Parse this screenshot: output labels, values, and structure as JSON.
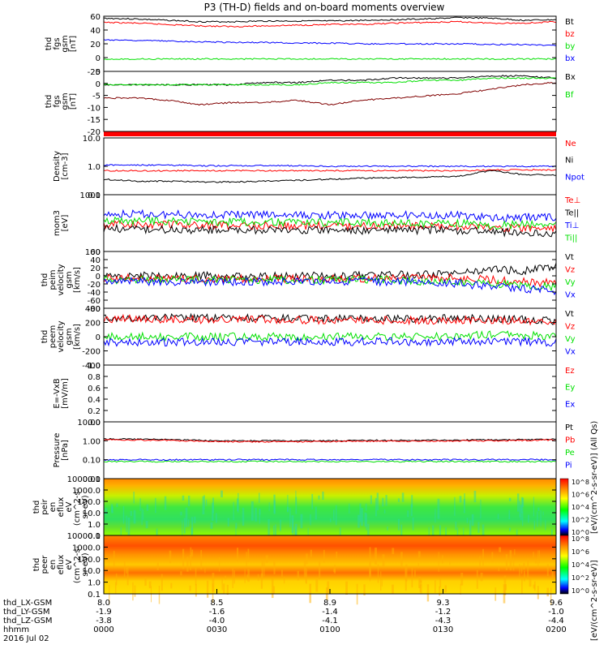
{
  "title": "P3 (TH-D) fields and on-board moments overview",
  "colors": {
    "black": "#000000",
    "red": "#ff0000",
    "green": "#00e000",
    "blue": "#0000ff"
  },
  "chart_data": [
    {
      "type": "line",
      "id": "p1",
      "ylabel": [
        "thd",
        "fgs",
        "gsm",
        "[nT]"
      ],
      "yticks": [
        "60",
        "40",
        "20",
        "0",
        "-20"
      ],
      "ylim": [
        -20,
        60
      ],
      "series": [
        {
          "name": "Bt",
          "color": "#000000",
          "values": [
            57,
            56,
            54,
            52,
            52,
            53,
            53,
            53,
            54,
            55,
            56,
            58,
            57,
            54,
            55
          ]
        },
        {
          "name": "bz",
          "color": "#ff0000",
          "values": [
            51,
            50,
            48,
            46,
            45,
            46,
            47,
            48,
            48,
            50,
            51,
            52,
            50,
            50,
            52
          ]
        },
        {
          "name": "by",
          "color": "#00e000",
          "values": [
            -2,
            -2,
            -2,
            -2,
            -2,
            -2,
            -2,
            -2,
            -2,
            -2,
            -2,
            -2,
            -2,
            -2,
            -2
          ]
        },
        {
          "name": "bx",
          "color": "#0000ff",
          "values": [
            26,
            25,
            24,
            23,
            22,
            22,
            21,
            21,
            20,
            20,
            20,
            20,
            19,
            19,
            18
          ]
        }
      ]
    },
    {
      "type": "line",
      "id": "p2",
      "ylabel": [
        "thd",
        "fgs",
        "gsm",
        "[nT]"
      ],
      "yticks": [
        "5",
        "0",
        "-5",
        "-10",
        "-15",
        "-20"
      ],
      "ylim": [
        -22,
        5
      ],
      "series": [
        {
          "name": "Bx",
          "color": "#000000",
          "values": [
            -1,
            -1,
            -1,
            -1,
            -1,
            0,
            0,
            1,
            1,
            2,
            2,
            2,
            3,
            3,
            2
          ]
        },
        {
          "name": "Bf",
          "color": "#00e000",
          "values": [
            -1,
            -1,
            -1,
            -1,
            -1,
            -1,
            -1,
            0,
            0,
            0,
            1,
            1,
            2,
            2,
            2
          ]
        },
        {
          "name": "",
          "color": "#800000",
          "values": [
            -7,
            -7,
            -8,
            -10,
            -9,
            -9,
            -8,
            -10,
            -8,
            -7,
            -6,
            -5,
            -3,
            -1,
            0
          ]
        }
      ]
    },
    {
      "type": "line",
      "id": "p3",
      "ylabel": [
        "Density",
        "[cm-3]"
      ],
      "yticks": [
        "10.0",
        "1.0",
        "0.1"
      ],
      "ylim": [
        0.1,
        10
      ],
      "log": true,
      "series": [
        {
          "name": "Ne",
          "color": "#ff0000",
          "values": [
            0.7,
            0.7,
            0.7,
            0.7,
            0.7,
            0.7,
            0.7,
            0.7,
            0.7,
            0.7,
            0.7,
            0.7,
            0.75,
            0.75,
            0.75
          ]
        },
        {
          "name": "Ni",
          "color": "#000000",
          "values": [
            0.35,
            0.3,
            0.3,
            0.28,
            0.28,
            0.3,
            0.32,
            0.35,
            0.38,
            0.4,
            0.42,
            0.45,
            0.7,
            0.5,
            0.5
          ]
        },
        {
          "name": "Npot",
          "color": "#0000ff",
          "values": [
            1.1,
            1.1,
            1.1,
            1.05,
            1.05,
            1.05,
            1.05,
            1.0,
            1.0,
            1.0,
            1.0,
            1.0,
            1.0,
            1.0,
            1.0
          ]
        }
      ]
    },
    {
      "type": "line",
      "id": "p4",
      "ylabel": [
        "mom3",
        "[eV]"
      ],
      "yticks": [
        "1000",
        "100"
      ],
      "ylim": [
        100,
        10000
      ],
      "log": true,
      "series": [
        {
          "name": "Te⊥",
          "color": "#ff0000",
          "values": [
            900,
            880,
            850,
            850,
            830,
            820,
            820,
            800,
            800,
            800,
            800,
            780,
            700,
            650,
            650
          ]
        },
        {
          "name": "Te||",
          "color": "#000000",
          "values": [
            650,
            600,
            600,
            580,
            570,
            560,
            560,
            550,
            550,
            560,
            560,
            560,
            500,
            450,
            450
          ]
        },
        {
          "name": "Ti⊥",
          "color": "#0000ff",
          "values": [
            2000,
            2100,
            2000,
            2000,
            1950,
            1950,
            1900,
            1900,
            1850,
            1900,
            1900,
            1900,
            1500,
            1600,
            1700
          ]
        },
        {
          "name": "Ti||",
          "color": "#00e000",
          "values": [
            1200,
            1200,
            1150,
            1100,
            1100,
            1100,
            1050,
            1050,
            1050,
            1000,
            1000,
            1000,
            800,
            900,
            900
          ]
        }
      ]
    },
    {
      "type": "line",
      "id": "p5",
      "ylabel": [
        "thd",
        "peim",
        "velocity",
        "gsm",
        "[km/s]"
      ],
      "yticks": [
        "60",
        "40",
        "20",
        "0",
        "-20",
        "-40",
        "-60",
        "-80"
      ],
      "ylim": [
        -80,
        80
      ],
      "series": [
        {
          "name": "Vt",
          "color": "#000000",
          "values": [
            10,
            12,
            10,
            12,
            10,
            10,
            12,
            12,
            12,
            15,
            15,
            20,
            30,
            25,
            40
          ]
        },
        {
          "name": "Vz",
          "color": "#ff0000",
          "values": [
            5,
            5,
            4,
            4,
            4,
            4,
            4,
            4,
            4,
            5,
            5,
            5,
            0,
            -5,
            -10
          ]
        },
        {
          "name": "Vy",
          "color": "#00e000",
          "values": [
            0,
            0,
            0,
            0,
            0,
            0,
            0,
            0,
            0,
            0,
            -5,
            -5,
            -10,
            -15,
            -20
          ]
        },
        {
          "name": "Vx",
          "color": "#0000ff",
          "values": [
            -5,
            -5,
            -5,
            -5,
            -5,
            -5,
            -5,
            -5,
            -5,
            -5,
            -5,
            -10,
            -20,
            -25,
            -30
          ]
        }
      ]
    },
    {
      "type": "line",
      "id": "p6",
      "ylabel": [
        "thd",
        "peem",
        "velocity",
        "gsm",
        "[km/s]"
      ],
      "yticks": [
        "400",
        "200",
        "0",
        "-200",
        "-400"
      ],
      "ylim": [
        -400,
        400
      ],
      "series": [
        {
          "name": "Vt",
          "color": "#000000",
          "values": [
            270,
            270,
            265,
            260,
            260,
            260,
            255,
            255,
            250,
            250,
            250,
            260,
            260,
            240,
            220
          ]
        },
        {
          "name": "Vz",
          "color": "#ff0000",
          "values": [
            250,
            250,
            245,
            240,
            240,
            240,
            235,
            235,
            230,
            230,
            230,
            240,
            230,
            220,
            200
          ]
        },
        {
          "name": "Vy",
          "color": "#00e000",
          "values": [
            0,
            0,
            0,
            0,
            0,
            0,
            0,
            0,
            0,
            0,
            0,
            10,
            30,
            20,
            0
          ]
        },
        {
          "name": "Vx",
          "color": "#0000ff",
          "values": [
            -80,
            -80,
            -80,
            -75,
            -75,
            -75,
            -75,
            -75,
            -70,
            -70,
            -70,
            -70,
            -60,
            -70,
            -80
          ]
        }
      ]
    },
    {
      "type": "line",
      "id": "p7",
      "ylabel": [
        "E=-VxB",
        "[mV/m]"
      ],
      "yticks": [
        "1.0",
        "0.8",
        "0.6",
        "0.4",
        "0.2",
        "0.0"
      ],
      "ylim": [
        0,
        1
      ],
      "series": [
        {
          "name": "Ez",
          "color": "#ff0000",
          "values": []
        },
        {
          "name": "Ey",
          "color": "#00e000",
          "values": []
        },
        {
          "name": "Ex",
          "color": "#0000ff",
          "values": []
        }
      ]
    },
    {
      "type": "line",
      "id": "p8",
      "ylabel": [
        "Pressure",
        "[nPa]"
      ],
      "yticks": [
        "10.00",
        "1.00",
        "0.10",
        "0.01"
      ],
      "ylim": [
        0.01,
        10
      ],
      "log": true,
      "series": [
        {
          "name": "Pt",
          "color": "#000000",
          "values": [
            1.25,
            1.2,
            1.15,
            1.05,
            1.0,
            1.0,
            1.0,
            1.0,
            1.05,
            1.05,
            1.05,
            1.1,
            1.1,
            1.15,
            1.2
          ]
        },
        {
          "name": "Pb",
          "color": "#ff0000",
          "values": [
            1.15,
            1.1,
            1.05,
            0.95,
            0.9,
            0.9,
            0.9,
            0.92,
            0.95,
            0.95,
            0.95,
            1.0,
            1.0,
            1.05,
            1.1
          ]
        },
        {
          "name": "Pe",
          "color": "#00e000",
          "values": [
            0.08,
            0.08,
            0.08,
            0.08,
            0.08,
            0.08,
            0.08,
            0.08,
            0.08,
            0.08,
            0.08,
            0.08,
            0.08,
            0.08,
            0.08
          ]
        },
        {
          "name": "Pi",
          "color": "#0000ff",
          "values": [
            0.1,
            0.1,
            0.1,
            0.1,
            0.1,
            0.1,
            0.1,
            0.1,
            0.1,
            0.1,
            0.1,
            0.1,
            0.1,
            0.1,
            0.1
          ]
        }
      ]
    },
    {
      "type": "heatmap",
      "id": "p9",
      "ylabel": [
        "thd",
        "peir",
        "en",
        "eflux",
        "eV",
        "(cm^2-s-",
        "sr-eV)"
      ],
      "yticks": [
        "10000.0",
        "1000.0",
        "100.0",
        "10.0",
        "1.0",
        "0.1"
      ],
      "colorbar": {
        "ticks": [
          "10^8",
          "10^6",
          "10^4",
          "10^2",
          "10^0"
        ],
        "label": "[eV/(cm^2-s-sr-eV)] (All Qs)"
      }
    },
    {
      "type": "heatmap",
      "id": "p10",
      "ylabel": [
        "thd",
        "peer",
        "en",
        "eflux",
        "eV",
        "(cm^2-s-",
        "sr-eV)"
      ],
      "yticks": [
        "10000.0",
        "1000.0",
        "100.0",
        "10.0",
        "1.0",
        "0.1"
      ],
      "colorbar": {
        "ticks": [
          "10^8",
          "10^6",
          "10^4",
          "10^2",
          "10^0"
        ],
        "label": "[eV/(cm^2-s-sr-eV)]"
      }
    }
  ],
  "xaxis": {
    "row_labels": [
      "thd_LX-GSM",
      "thd_LY-GSM",
      "thd_LZ-GSM",
      "hhmm",
      "2016 Jul 02"
    ],
    "ticks": [
      {
        "lx": "8.0",
        "ly": "-1.9",
        "lz": "-3.8",
        "hhmm": "0000"
      },
      {
        "lx": "8.5",
        "ly": "-1.6",
        "lz": "-4.0",
        "hhmm": "0030"
      },
      {
        "lx": "8.9",
        "ly": "-1.4",
        "lz": "-4.1",
        "hhmm": "0100"
      },
      {
        "lx": "9.3",
        "ly": "-1.2",
        "lz": "-4.3",
        "hhmm": "0130"
      },
      {
        "lx": "9.6",
        "ly": "-1.0",
        "lz": "-4.4",
        "hhmm": "0200"
      }
    ]
  }
}
